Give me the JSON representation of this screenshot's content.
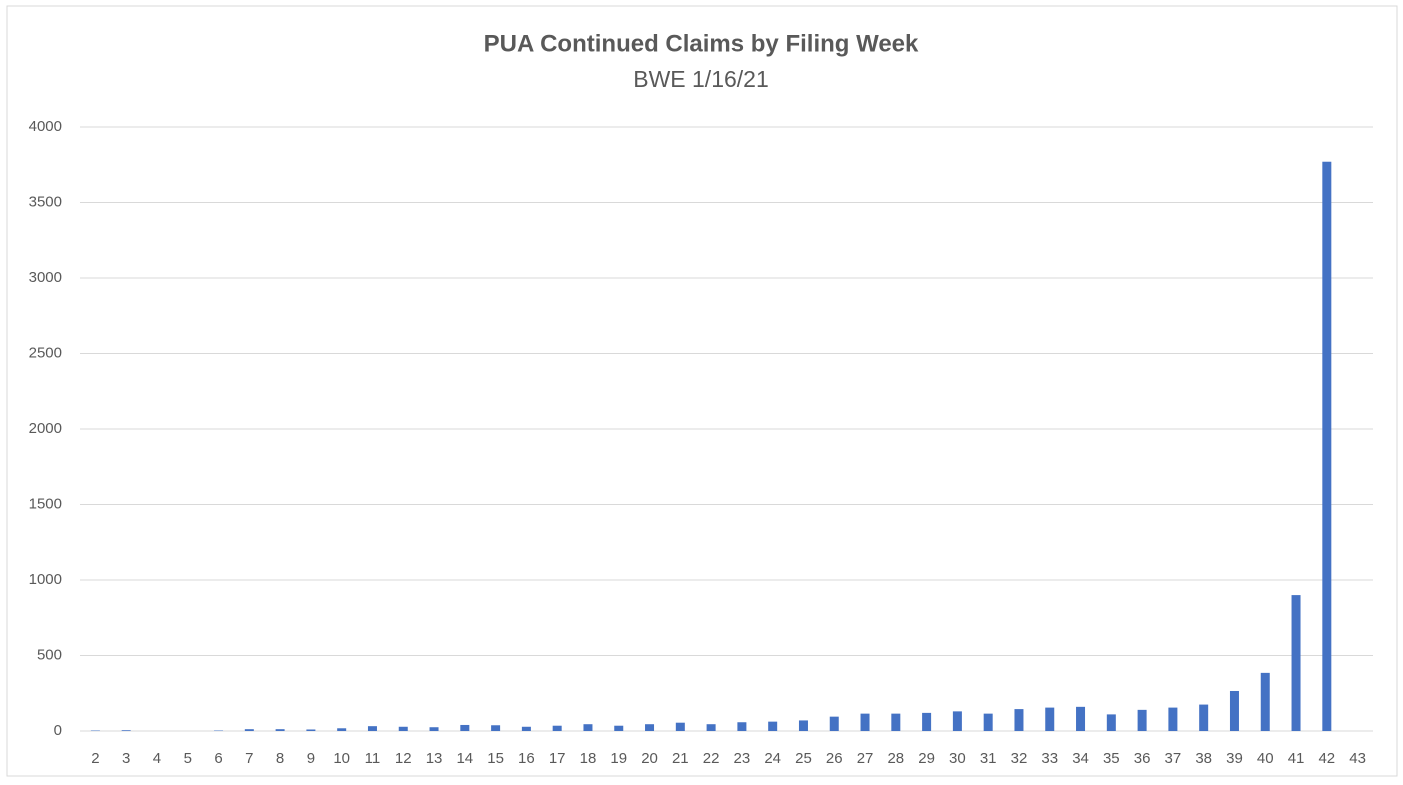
{
  "chart_data": {
    "type": "bar",
    "title": "PUA Continued Claims by Filing Week",
    "subtitle": "BWE 1/16/21",
    "categories": [
      "2",
      "3",
      "4",
      "5",
      "6",
      "7",
      "8",
      "9",
      "10",
      "11",
      "12",
      "13",
      "14",
      "15",
      "16",
      "17",
      "18",
      "19",
      "20",
      "21",
      "22",
      "23",
      "24",
      "25",
      "26",
      "27",
      "28",
      "29",
      "30",
      "31",
      "32",
      "33",
      "34",
      "35",
      "36",
      "37",
      "38",
      "39",
      "40",
      "41",
      "42",
      "43"
    ],
    "values": [
      3,
      5,
      0,
      0,
      3,
      12,
      12,
      10,
      18,
      32,
      28,
      25,
      40,
      38,
      28,
      35,
      45,
      35,
      45,
      55,
      45,
      58,
      62,
      70,
      95,
      115,
      115,
      120,
      130,
      115,
      145,
      155,
      160,
      110,
      140,
      155,
      175,
      265,
      385,
      900,
      3770,
      0
    ],
    "color": "#4472c4",
    "ylim": [
      0,
      4000
    ],
    "yticks": [
      0,
      500,
      1000,
      1500,
      2000,
      2500,
      3000,
      3500,
      4000
    ],
    "grid": true
  }
}
